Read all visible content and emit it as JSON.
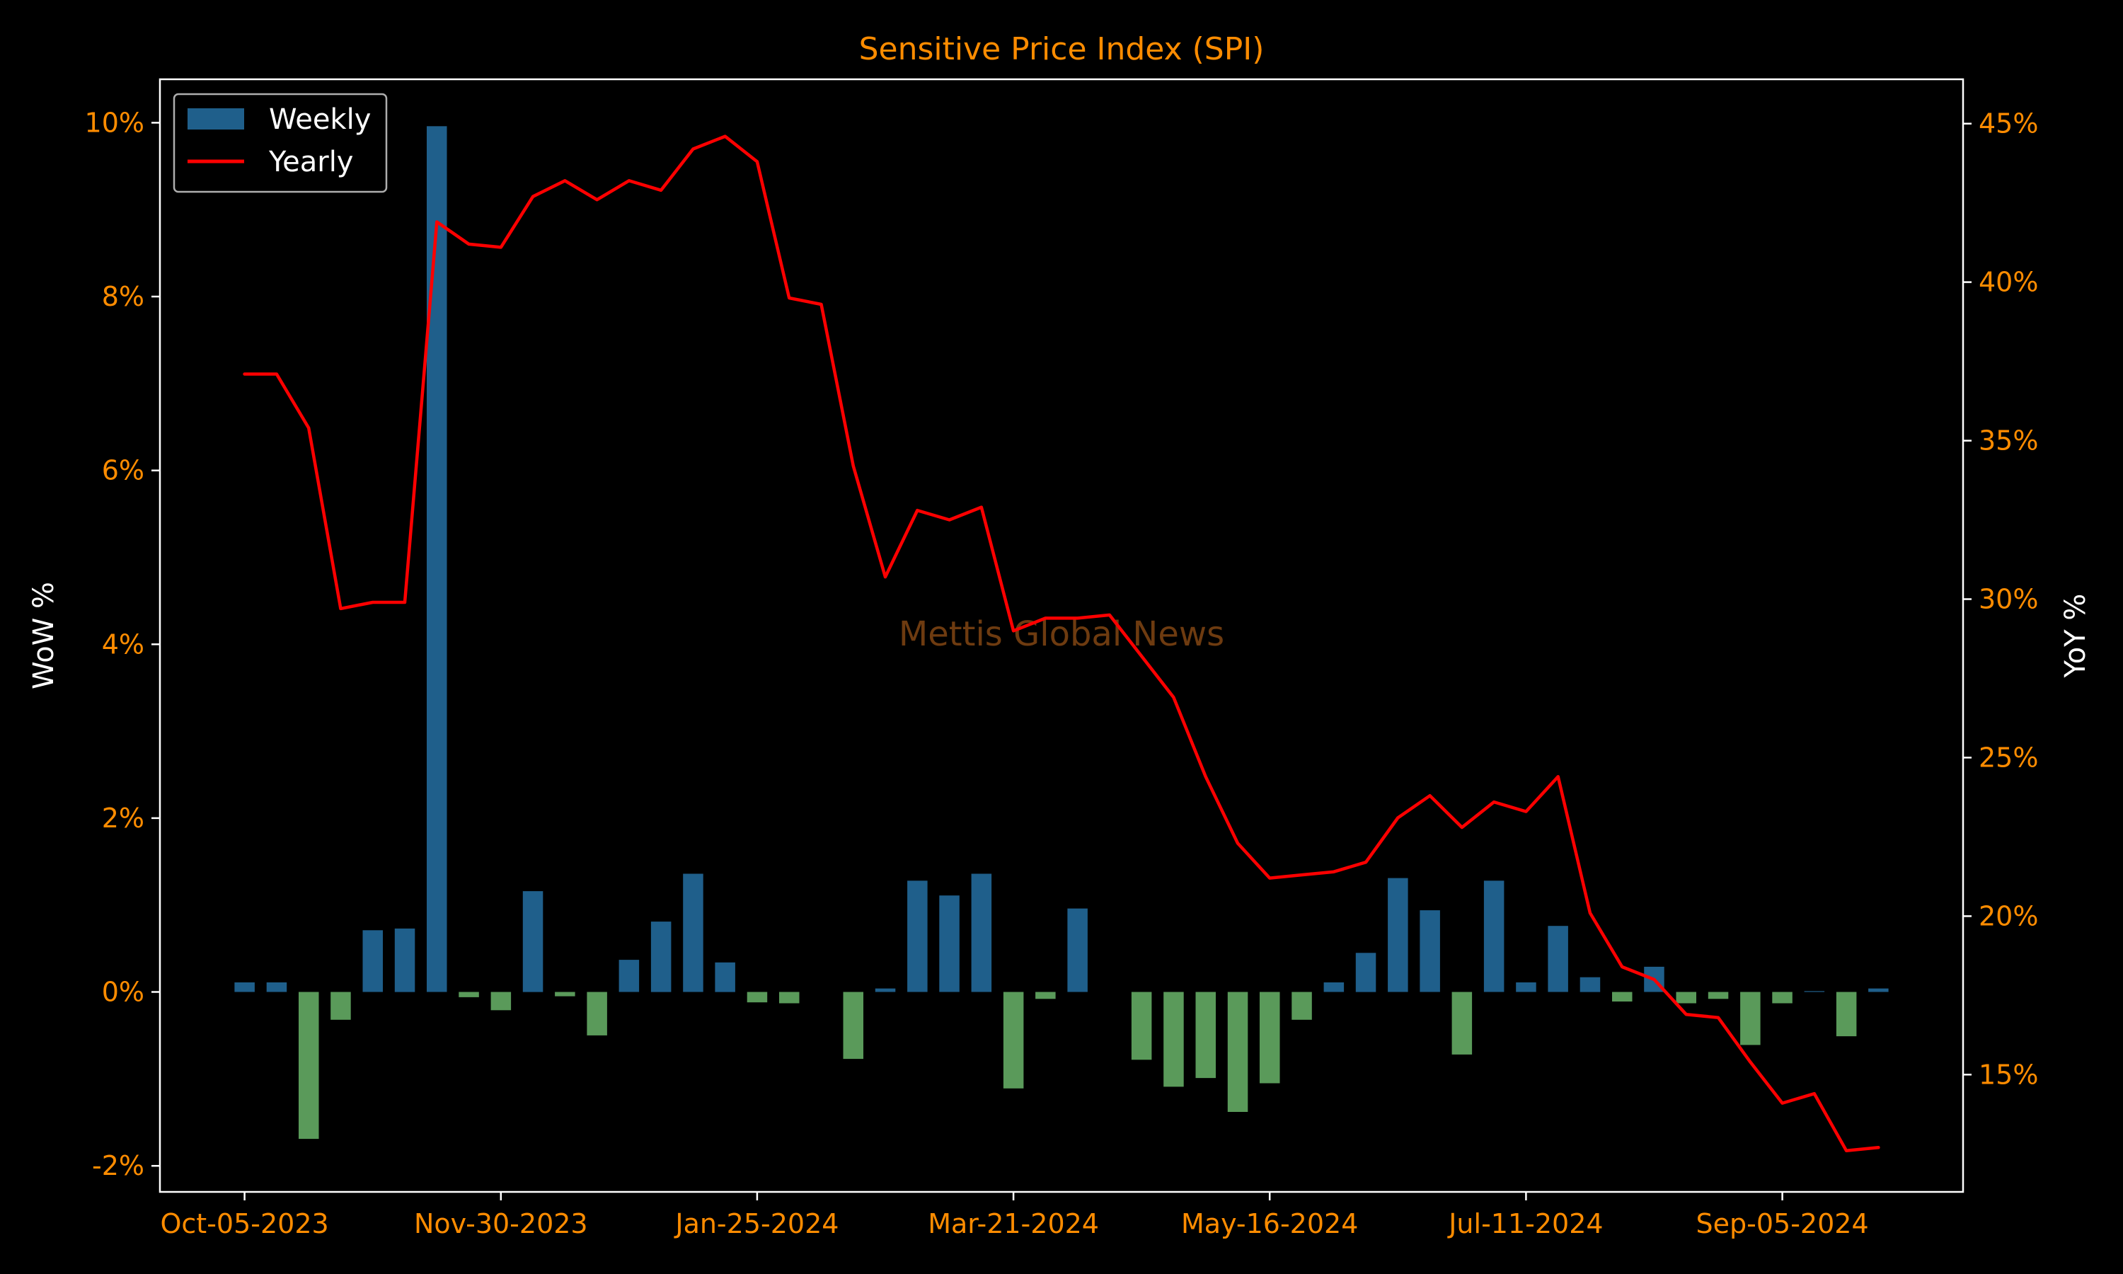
{
  "chart_data": {
    "type": "bar+line",
    "title": "Sensitive Price Index (SPI)",
    "ylabel": "WoW %",
    "ylabel_right": "YoY %",
    "watermark": "Mettis Global News",
    "x_tick_labels": [
      "Oct-05-2023",
      "Nov-30-2023",
      "Jan-25-2024",
      "Mar-21-2024",
      "May-16-2024",
      "Jul-11-2024",
      "Sep-05-2024"
    ],
    "x_tick_dates": [
      "2023-10-05",
      "2023-11-30",
      "2024-01-25",
      "2024-03-21",
      "2024-05-16",
      "2024-07-11",
      "2024-09-05"
    ],
    "left_axis": {
      "ylim": [
        -2.3,
        10.5
      ],
      "ticks": [
        -2,
        0,
        2,
        4,
        6,
        8,
        10
      ],
      "tick_labels": [
        "-2%",
        "0%",
        "2%",
        "4%",
        "6%",
        "8%",
        "10%"
      ]
    },
    "right_axis": {
      "ylim": [
        11.3,
        46.4
      ],
      "ticks": [
        15,
        20,
        25,
        30,
        35,
        40,
        45
      ],
      "tick_labels": [
        "15%",
        "20%",
        "25%",
        "30%",
        "35%",
        "40%",
        "45%"
      ]
    },
    "legend": {
      "position": "top-left",
      "entries": [
        "Weekly",
        "Yearly"
      ]
    },
    "colors": {
      "positive_bar": "#1f5f8b",
      "negative_bar": "#5a9a5a",
      "line": "#ff0000",
      "accent": "#ff8c00",
      "axes": "#ffffff",
      "background": "#000000"
    },
    "grid": false,
    "dates": [
      "2023-10-05",
      "2023-10-12",
      "2023-10-19",
      "2023-10-26",
      "2023-11-02",
      "2023-11-09",
      "2023-11-16",
      "2023-11-23",
      "2023-11-30",
      "2023-12-07",
      "2023-12-14",
      "2023-12-21",
      "2023-12-28",
      "2024-01-04",
      "2024-01-11",
      "2024-01-18",
      "2024-01-25",
      "2024-02-01",
      "2024-02-08",
      "2024-02-15",
      "2024-02-22",
      "2024-02-29",
      "2024-03-07",
      "2024-03-14",
      "2024-03-21",
      "2024-03-28",
      "2024-04-04",
      "2024-04-11",
      "2024-04-18",
      "2024-04-25",
      "2024-05-02",
      "2024-05-09",
      "2024-05-16",
      "2024-05-23",
      "2024-05-30",
      "2024-06-06",
      "2024-06-13",
      "2024-06-20",
      "2024-06-27",
      "2024-07-04",
      "2024-07-11",
      "2024-07-18",
      "2024-07-25",
      "2024-08-01",
      "2024-08-08",
      "2024-08-15",
      "2024-08-22",
      "2024-08-29",
      "2024-09-05",
      "2024-09-12",
      "2024-09-19",
      "2024-09-26"
    ],
    "series": [
      {
        "name": "Weekly",
        "type": "bar",
        "axis": "left",
        "values": [
          0.11,
          0.11,
          -1.69,
          -0.32,
          0.71,
          0.73,
          9.96,
          -0.06,
          -0.21,
          1.16,
          -0.05,
          -0.5,
          0.37,
          0.81,
          1.36,
          0.34,
          -0.12,
          -0.13,
          0.0,
          -0.77,
          0.04,
          1.28,
          1.11,
          1.36,
          -1.11,
          -0.08,
          0.96,
          0.0,
          -0.78,
          -1.09,
          -0.99,
          -1.38,
          -1.05,
          -0.32,
          0.11,
          0.45,
          1.31,
          0.94,
          -0.72,
          1.28,
          0.11,
          0.76,
          0.17,
          -0.11,
          0.29,
          -0.13,
          -0.08,
          -0.61,
          -0.13,
          0.01,
          -0.51,
          0.04
        ]
      },
      {
        "name": "Yearly",
        "type": "line",
        "axis": "right",
        "values": [
          37.1,
          37.1,
          35.4,
          29.7,
          29.9,
          29.9,
          41.9,
          41.2,
          41.1,
          42.7,
          43.2,
          42.6,
          43.2,
          42.9,
          44.2,
          44.6,
          43.8,
          39.5,
          39.3,
          34.2,
          30.7,
          32.8,
          32.5,
          32.9,
          29.0,
          29.4,
          29.4,
          29.5,
          28.2,
          26.9,
          24.4,
          22.3,
          21.2,
          21.3,
          21.4,
          21.7,
          23.1,
          23.8,
          22.8,
          23.6,
          23.3,
          24.4,
          20.1,
          18.4,
          18.0,
          16.9,
          16.8,
          15.4,
          14.1,
          14.4,
          12.6,
          12.7
        ]
      }
    ]
  }
}
